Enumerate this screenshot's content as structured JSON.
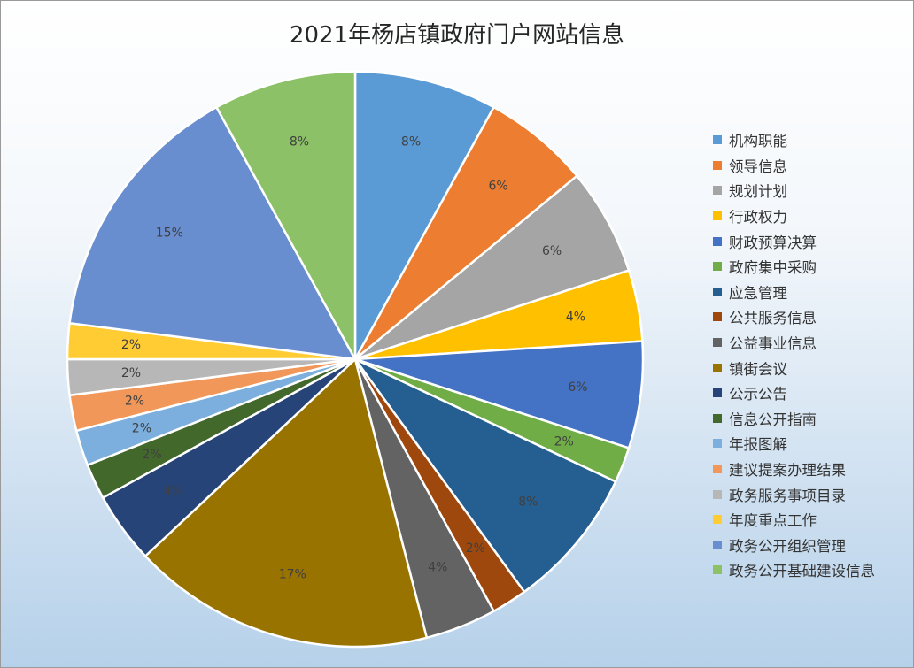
{
  "chart_data": {
    "type": "pie",
    "title": "2021年杨店镇政府门户网站信息",
    "legend_position": "right",
    "slices": [
      {
        "label": "机构职能",
        "value": 8,
        "display": "8%",
        "color": "#5b9bd5"
      },
      {
        "label": "领导信息",
        "value": 6,
        "display": "6%",
        "color": "#ed7d31"
      },
      {
        "label": "规划计划",
        "value": 6,
        "display": "6%",
        "color": "#a5a5a5"
      },
      {
        "label": "行政权力",
        "value": 4,
        "display": "4%",
        "color": "#ffc000"
      },
      {
        "label": "财政预算决算",
        "value": 6,
        "display": "6%",
        "color": "#4472c4"
      },
      {
        "label": "政府集中采购",
        "value": 2,
        "display": "2%",
        "color": "#70ad47"
      },
      {
        "label": "应急管理",
        "value": 8,
        "display": "8%",
        "color": "#255e91"
      },
      {
        "label": "公共服务信息",
        "value": 2,
        "display": "2%",
        "color": "#9e480e"
      },
      {
        "label": "公益事业信息",
        "value": 4,
        "display": "4%",
        "color": "#636363"
      },
      {
        "label": "镇街会议",
        "value": 17,
        "display": "17%",
        "color": "#997300"
      },
      {
        "label": "公示公告",
        "value": 4,
        "display": "4%",
        "color": "#264478"
      },
      {
        "label": "信息公开指南",
        "value": 2,
        "display": "2%",
        "color": "#43682b"
      },
      {
        "label": "年报图解",
        "value": 2,
        "display": "2%",
        "color": "#7cafdd"
      },
      {
        "label": "建议提案办理结果",
        "value": 2,
        "display": "2%",
        "color": "#f1975a"
      },
      {
        "label": "政务服务事项目录",
        "value": 2,
        "display": "2%",
        "color": "#b7b7b7"
      },
      {
        "label": "年度重点工作",
        "value": 2,
        "display": "2%",
        "color": "#ffcd33"
      },
      {
        "label": "政务公开组织管理",
        "value": 15,
        "display": "15%",
        "color": "#698ed0"
      },
      {
        "label": "政务公开基础建设信息",
        "value": 8,
        "display": "8%",
        "color": "#8cc168"
      }
    ]
  }
}
